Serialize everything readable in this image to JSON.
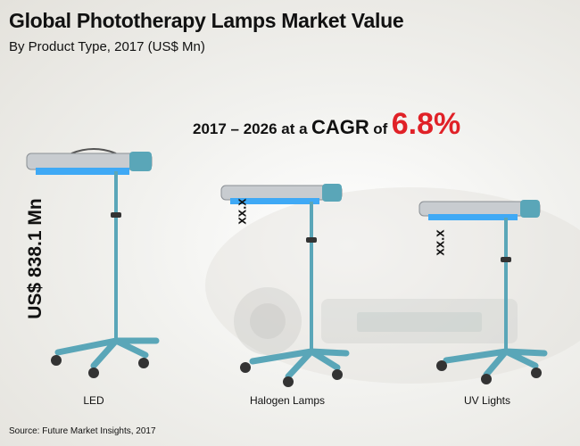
{
  "header": {
    "title": "Global Phototherapy Lamps Market Value",
    "subtitle": "By Product Type, 2017 (US$ Mn)"
  },
  "cagr": {
    "prefix": "2017 – 2026 at a",
    "word": "CAGR",
    "of": "of",
    "value": "6.8%"
  },
  "colors": {
    "accent": "#e02127",
    "lamp_pole": "#5aa6b8",
    "lamp_light": "#3fa9f5",
    "lamp_housing": "#c8ccd0"
  },
  "chart_data": {
    "type": "bar",
    "categories": [
      "LED",
      "Halogen Lamps",
      "UV Lights"
    ],
    "values": [
      838.1,
      null,
      null
    ],
    "value_labels": [
      "US$ 838.1 Mn",
      "xx.x",
      "xx.x"
    ],
    "title": "Global Phototherapy Lamps Market Value",
    "subtitle": "By Product Type, 2017 (US$ Mn)",
    "xlabel": "",
    "ylabel": ""
  },
  "footer": {
    "source": "Source: Future Market Insights, 2017"
  }
}
